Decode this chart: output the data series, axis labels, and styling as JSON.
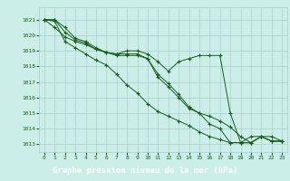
{
  "title": "Graphe pression niveau de la mer (hPa)",
  "background_color": "#cceee8",
  "grid_color": "#aacccc",
  "line_color": "#1a5c1a",
  "xlabel_bg": "#1a5c1a",
  "xlabel_fg": "#ffffff",
  "marker": "+",
  "xlim": [
    -0.5,
    23.5
  ],
  "ylim": [
    1012.5,
    1021.8
  ],
  "xticks": [
    0,
    1,
    2,
    3,
    4,
    5,
    6,
    7,
    8,
    9,
    10,
    11,
    12,
    13,
    14,
    15,
    16,
    17,
    18,
    19,
    20,
    21,
    22,
    23
  ],
  "yticks": [
    1013,
    1014,
    1015,
    1016,
    1017,
    1018,
    1019,
    1020,
    1021
  ],
  "series": [
    [
      1021.0,
      1021.0,
      1020.5,
      1019.8,
      1019.6,
      1019.2,
      1018.9,
      1018.8,
      1019.0,
      1019.0,
      1018.8,
      1018.3,
      1017.7,
      1018.3,
      1018.5,
      1018.7,
      1018.7,
      1018.7,
      1015.0,
      1013.1,
      1013.5,
      1013.5,
      1013.2,
      1013.2
    ],
    [
      1021.0,
      1020.5,
      1019.9,
      1019.6,
      1019.4,
      1019.1,
      1018.9,
      1018.8,
      1018.8,
      1018.8,
      1018.5,
      1017.5,
      1016.9,
      1016.2,
      1015.4,
      1015.0,
      1014.8,
      1014.5,
      1014.1,
      1013.5,
      1013.1,
      1013.5,
      1013.5,
      1013.2
    ],
    [
      1021.0,
      1021.0,
      1020.2,
      1019.7,
      1019.5,
      1019.1,
      1018.9,
      1018.7,
      1018.7,
      1018.7,
      1018.5,
      1017.3,
      1016.7,
      1016.0,
      1015.3,
      1015.0,
      1014.3,
      1014.0,
      1013.1,
      1013.1,
      1013.1,
      1013.5,
      1013.2,
      1013.2
    ],
    [
      1021.0,
      1020.9,
      1019.6,
      1019.2,
      1018.8,
      1018.4,
      1018.1,
      1017.5,
      1016.8,
      1016.3,
      1015.6,
      1015.1,
      1014.8,
      1014.5,
      1014.2,
      1013.8,
      1013.5,
      1013.3,
      1013.1,
      1013.1,
      1013.1,
      1013.5,
      1013.2,
      1013.2
    ]
  ]
}
